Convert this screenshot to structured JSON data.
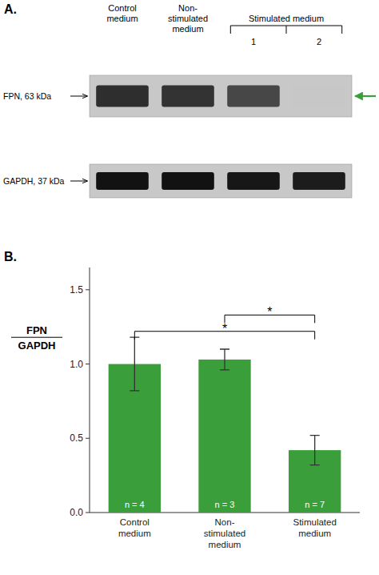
{
  "chart_data": [
    {
      "type": "blot",
      "title": "A.",
      "categories": [
        "Control\nmedium",
        "Non-\nstimulated\nmedium",
        "1",
        "2"
      ],
      "annotations": [
        "Stimulated medium"
      ],
      "series": [
        {
          "name": "FPN, 63 kDa",
          "values": [
            0.18,
            0.2,
            0.28,
            0.78
          ],
          "color": "#3a9e3a"
        },
        {
          "name": "GAPDH, 37 kDa",
          "values": [
            0.07,
            0.07,
            0.09,
            0.11
          ]
        }
      ]
    },
    {
      "type": "bar",
      "title": "B.",
      "categories": [
        "Control\nmedium",
        "Non-\nstimulated\nmedium",
        "Stimulated\nmedium"
      ],
      "values": [
        1.0,
        1.03,
        0.42
      ],
      "errors": [
        0.18,
        0.07,
        0.1
      ],
      "n_labels": [
        "n = 4",
        "n = 3",
        "n = 7"
      ],
      "color": "#3a9e3a",
      "ylabel": [
        "FPN",
        "GAPDH"
      ],
      "ylim": [
        0,
        1.65
      ],
      "yticks": [
        {
          "value": 0.0,
          "label": "0.0"
        },
        0.5,
        {
          "value": 1.0,
          "label": "1.0"
        },
        1.5
      ],
      "grid": false,
      "significance": [
        {
          "between": [
            0,
            2
          ],
          "y": 1.22,
          "label": "*"
        },
        {
          "between": [
            1,
            2
          ],
          "y": 1.33,
          "label": "*"
        }
      ]
    }
  ]
}
